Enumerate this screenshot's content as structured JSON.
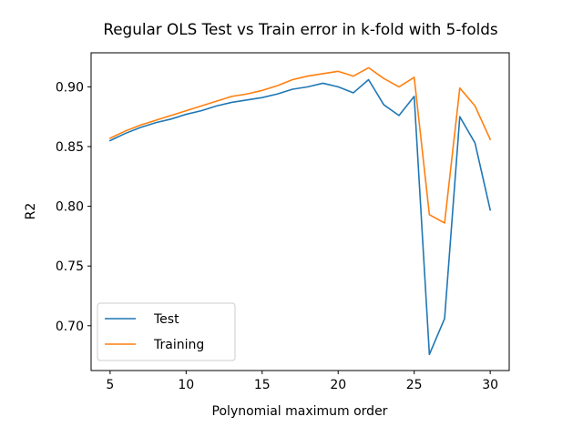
{
  "chart_data": {
    "type": "line",
    "title": "Regular OLS Test vs Train error in k-fold with 5-folds",
    "xlabel": "Polynomial maximum order",
    "ylabel": "R2",
    "xlim": [
      3.75,
      31.25
    ],
    "ylim": [
      0.6625,
      0.9285
    ],
    "xticks": [
      5,
      10,
      15,
      20,
      25,
      30
    ],
    "yticks": [
      0.7,
      0.75,
      0.8,
      0.85,
      0.9
    ],
    "xtick_labels": [
      "5",
      "10",
      "15",
      "20",
      "25",
      "30"
    ],
    "ytick_labels": [
      "0.70",
      "0.75",
      "0.80",
      "0.85",
      "0.90"
    ],
    "grid": false,
    "legend_position": "lower-left",
    "x": [
      5,
      6,
      7,
      8,
      9,
      10,
      11,
      12,
      13,
      14,
      15,
      16,
      17,
      18,
      19,
      20,
      21,
      22,
      23,
      24,
      25,
      26,
      27,
      28,
      29,
      30
    ],
    "series": [
      {
        "name": "Test",
        "color": "#1f77b4",
        "values": [
          0.855,
          0.861,
          0.866,
          0.87,
          0.873,
          0.877,
          0.88,
          0.884,
          0.887,
          0.889,
          0.891,
          0.894,
          0.898,
          0.9,
          0.903,
          0.9,
          0.895,
          0.906,
          0.885,
          0.876,
          0.892,
          0.676,
          0.706,
          0.875,
          0.853,
          0.797
        ]
      },
      {
        "name": "Training",
        "color": "#ff7f0e",
        "values": [
          0.857,
          0.863,
          0.868,
          0.872,
          0.876,
          0.88,
          0.884,
          0.888,
          0.892,
          0.894,
          0.897,
          0.901,
          0.906,
          0.909,
          0.911,
          0.913,
          0.909,
          0.916,
          0.907,
          0.9,
          0.908,
          0.793,
          0.786,
          0.899,
          0.884,
          0.856
        ]
      }
    ]
  }
}
